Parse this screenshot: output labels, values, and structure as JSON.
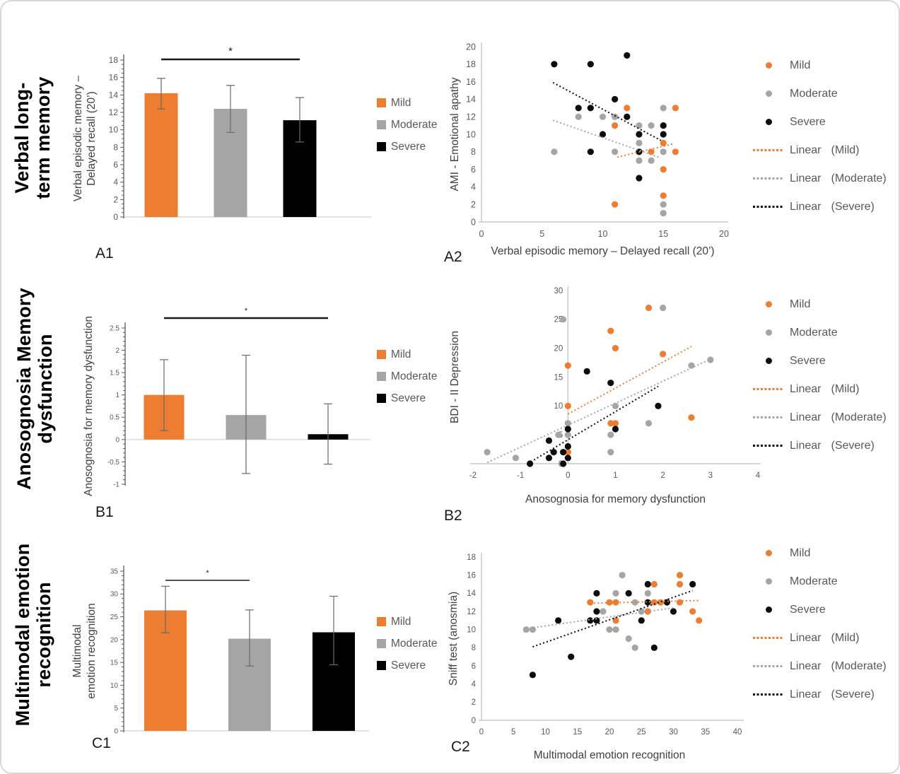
{
  "figure": {
    "rows": [
      {
        "title": "Verbal long-\nterm memory",
        "panel_left_label": "A1",
        "panel_right_label": "A2"
      },
      {
        "title": "Anosognosia Memory\ndysfunction",
        "panel_left_label": "B1",
        "panel_right_label": "B2"
      },
      {
        "title": "Multimodal emotion\nrecognition",
        "panel_left_label": "C1",
        "panel_right_label": "C2"
      }
    ],
    "group_legend_items": [
      {
        "label": "Mild",
        "color": "#ED7D31"
      },
      {
        "label": "Moderate",
        "color": "#A5A5A5"
      },
      {
        "label": "Severe",
        "color": "#000000"
      }
    ],
    "scatter_legend_items": [
      {
        "marker": "dot",
        "label": "Mild",
        "qualifier": "",
        "color": "#ED7D31"
      },
      {
        "marker": "dot",
        "label": "Moderate",
        "qualifier": "",
        "color": "#A5A5A5"
      },
      {
        "marker": "dot",
        "label": "Severe",
        "qualifier": "",
        "color": "#0D0D0D"
      },
      {
        "marker": "dotted-line",
        "label": "Linear",
        "qualifier": "(Mild)",
        "color": "#ED7D31"
      },
      {
        "marker": "dotted-line",
        "label": "Linear",
        "qualifier": "(Moderate)",
        "color": "#A5A5A5"
      },
      {
        "marker": "dotted-line",
        "label": "Linear",
        "qualifier": "(Severe)",
        "color": "#0D0D0D"
      }
    ]
  },
  "colors": {
    "mild": "#ED7D31",
    "moderate": "#A5A5A5",
    "severe": "#0D0D0D",
    "severe_bar": "#000000",
    "scatter_axis": "#BFBFBF",
    "bar_axis": "#595959",
    "tick_text": "#595959",
    "axis_label_text": "#404040",
    "error_bar": "#696969",
    "significance": "#1a1a1a",
    "baseline": "#D9D9D9"
  },
  "chart_data": [
    {
      "id": "A1",
      "type": "bar",
      "ylabel": "Verbal episodic memory –\nDelayed recall (20’)",
      "categories": [
        "Mild",
        "Moderate",
        "Severe"
      ],
      "values": [
        14.2,
        12.4,
        11.1
      ],
      "error_low": [
        12.4,
        9.7,
        8.6
      ],
      "error_high": [
        15.9,
        15.1,
        13.7
      ],
      "ylim": [
        0,
        18
      ],
      "ytick_step": 2,
      "significance": {
        "between": [
          "Mild",
          "Severe"
        ],
        "label": "*"
      }
    },
    {
      "id": "A2",
      "type": "scatter",
      "xlabel": "Verbal episodic memory –  Delayed recall (20’)",
      "ylabel": "AMI - Emotional apathy",
      "xlim": [
        0,
        20
      ],
      "xticks": [
        0,
        5,
        10,
        15,
        20
      ],
      "ylim": [
        0,
        20
      ],
      "yticks": [
        0,
        2,
        4,
        6,
        8,
        10,
        12,
        14,
        16,
        18,
        20
      ],
      "series": [
        {
          "name": "Mild",
          "points": [
            [
              11,
              2
            ],
            [
              11,
              11
            ],
            [
              12,
              13
            ],
            [
              14,
              8
            ],
            [
              15,
              3
            ],
            [
              15,
              6
            ],
            [
              15,
              9
            ],
            [
              16,
              8
            ],
            [
              16,
              13
            ]
          ]
        },
        {
          "name": "Moderate",
          "points": [
            [
              6,
              8
            ],
            [
              8,
              12
            ],
            [
              10,
              12
            ],
            [
              11,
              8
            ],
            [
              11,
              12
            ],
            [
              13,
              7
            ],
            [
              13,
              9
            ],
            [
              13,
              11
            ],
            [
              14,
              7
            ],
            [
              14,
              11
            ],
            [
              15,
              1
            ],
            [
              15,
              2
            ],
            [
              15,
              8
            ],
            [
              15,
              13
            ]
          ]
        },
        {
          "name": "Severe",
          "points": [
            [
              6,
              18
            ],
            [
              8,
              13
            ],
            [
              9,
              8
            ],
            [
              9,
              13
            ],
            [
              9,
              18
            ],
            [
              10,
              10
            ],
            [
              11,
              14
            ],
            [
              12,
              12
            ],
            [
              12,
              19
            ],
            [
              13,
              5
            ],
            [
              13,
              8
            ],
            [
              13,
              10
            ],
            [
              15,
              10
            ],
            [
              15,
              11
            ]
          ]
        }
      ],
      "trendlines": [
        {
          "name": "Mild",
          "from": [
            11.2,
            7.4
          ],
          "to": [
            15.8,
            8.9
          ]
        },
        {
          "name": "Moderate",
          "from": [
            5.9,
            11.6
          ],
          "to": [
            14.8,
            7.3
          ]
        },
        {
          "name": "Severe",
          "from": [
            5.9,
            15.9
          ],
          "to": [
            14.8,
            9.3
          ]
        }
      ]
    },
    {
      "id": "B1",
      "type": "bar",
      "ylabel": "Anosognosia for memory dysfunction",
      "categories": [
        "Mild",
        "Moderate",
        "Severe"
      ],
      "values": [
        1.0,
        0.55,
        0.12
      ],
      "error_low": [
        0.2,
        -0.76,
        -0.55
      ],
      "error_high": [
        1.79,
        1.89,
        0.8
      ],
      "ylim": [
        -1,
        2.5
      ],
      "ytick_step": 0.5,
      "significance": {
        "between": [
          "Mild",
          "Severe"
        ],
        "label": "*"
      }
    },
    {
      "id": "B2",
      "type": "scatter",
      "xlabel": "Anosognosia for memory dysfunction",
      "ylabel": "BDI - II Depression",
      "xlim": [
        -2,
        4
      ],
      "xticks": [
        -2,
        -1,
        0,
        1,
        2,
        3,
        4
      ],
      "ylim": [
        0,
        30
      ],
      "yticks": [
        0,
        5,
        10,
        15,
        20,
        25,
        30
      ],
      "series": [
        {
          "name": "Mild",
          "points": [
            [
              0,
              2
            ],
            [
              0,
              10
            ],
            [
              0,
              17
            ],
            [
              0.9,
              7
            ],
            [
              0.9,
              23
            ],
            [
              1,
              7
            ],
            [
              1,
              20
            ],
            [
              1.7,
              27
            ],
            [
              2,
              19
            ],
            [
              2.6,
              8
            ]
          ]
        },
        {
          "name": "Moderate",
          "points": [
            [
              -1.7,
              2
            ],
            [
              -1.1,
              1
            ],
            [
              -0.2,
              5
            ],
            [
              -0.1,
              25
            ],
            [
              0,
              5
            ],
            [
              0,
              7
            ],
            [
              0.9,
              2
            ],
            [
              0.9,
              5
            ],
            [
              1,
              10
            ],
            [
              1.7,
              7
            ],
            [
              2,
              27
            ],
            [
              2.6,
              17
            ],
            [
              3,
              18
            ]
          ]
        },
        {
          "name": "Severe",
          "points": [
            [
              -0.8,
              0
            ],
            [
              -0.4,
              1
            ],
            [
              -0.4,
              4
            ],
            [
              -0.3,
              2
            ],
            [
              -0.1,
              0
            ],
            [
              -0.1,
              2
            ],
            [
              0,
              1
            ],
            [
              0,
              3
            ],
            [
              0,
              6
            ],
            [
              0.4,
              16
            ],
            [
              0.9,
              14
            ],
            [
              1,
              6
            ],
            [
              1.9,
              10
            ]
          ]
        }
      ],
      "trendlines": [
        {
          "name": "Mild",
          "from": [
            0,
            8.6
          ],
          "to": [
            2.6,
            20.3
          ]
        },
        {
          "name": "Moderate",
          "from": [
            -1.7,
            0.2
          ],
          "to": [
            3,
            18.1
          ]
        },
        {
          "name": "Severe",
          "from": [
            -0.85,
            0
          ],
          "to": [
            1.9,
            13.4
          ]
        }
      ]
    },
    {
      "id": "C1",
      "type": "bar",
      "ylabel": "Multimodal\nemotion recognition",
      "categories": [
        "Mild",
        "Moderate",
        "Severe"
      ],
      "values": [
        26.4,
        20.2,
        21.6
      ],
      "error_low": [
        21.5,
        14.2,
        14.5
      ],
      "error_high": [
        31.7,
        26.5,
        29.5
      ],
      "ylim": [
        0,
        35
      ],
      "ytick_step": 5,
      "significance": {
        "between": [
          "Mild",
          "Moderate"
        ],
        "label": "*"
      }
    },
    {
      "id": "C2",
      "type": "scatter",
      "xlabel": "Multimodal emotion recognition",
      "ylabel": "Sniff test (anosmia)",
      "xlim": [
        0,
        40
      ],
      "xticks": [
        0,
        5,
        10,
        15,
        20,
        25,
        30,
        35,
        40
      ],
      "ylim": [
        0,
        18
      ],
      "yticks": [
        0,
        2,
        4,
        6,
        8,
        10,
        12,
        14,
        16,
        18
      ],
      "series": [
        {
          "name": "Mild",
          "points": [
            [
              17,
              13
            ],
            [
              20,
              13
            ],
            [
              21,
              11
            ],
            [
              21,
              13
            ],
            [
              26,
              12
            ],
            [
              27,
              13
            ],
            [
              27,
              15
            ],
            [
              28,
              13
            ],
            [
              31,
              13
            ],
            [
              31,
              15
            ],
            [
              31,
              16
            ],
            [
              33,
              12
            ],
            [
              34,
              11
            ]
          ]
        },
        {
          "name": "Moderate",
          "points": [
            [
              7,
              10
            ],
            [
              8,
              10
            ],
            [
              19,
              12
            ],
            [
              20,
              10
            ],
            [
              21,
              10
            ],
            [
              21,
              14
            ],
            [
              22,
              16
            ],
            [
              23,
              9
            ],
            [
              24,
              8
            ],
            [
              24,
              13
            ],
            [
              25,
              12
            ],
            [
              26,
              14
            ]
          ]
        },
        {
          "name": "Severe",
          "points": [
            [
              8,
              5
            ],
            [
              12,
              11
            ],
            [
              14,
              7
            ],
            [
              17,
              11
            ],
            [
              18,
              11
            ],
            [
              18,
              12
            ],
            [
              18,
              14
            ],
            [
              23,
              14
            ],
            [
              25,
              11
            ],
            [
              26,
              13
            ],
            [
              26,
              15
            ],
            [
              27,
              8
            ],
            [
              29,
              13
            ],
            [
              30,
              12
            ],
            [
              33,
              15
            ]
          ]
        }
      ],
      "trendlines": [
        {
          "name": "Mild",
          "from": [
            17,
            12.9
          ],
          "to": [
            34,
            13.2
          ]
        },
        {
          "name": "Moderate",
          "from": [
            7,
            10.1
          ],
          "to": [
            30,
            12.4
          ]
        },
        {
          "name": "Severe",
          "from": [
            8,
            8.1
          ],
          "to": [
            33,
            14.3
          ]
        }
      ]
    }
  ]
}
